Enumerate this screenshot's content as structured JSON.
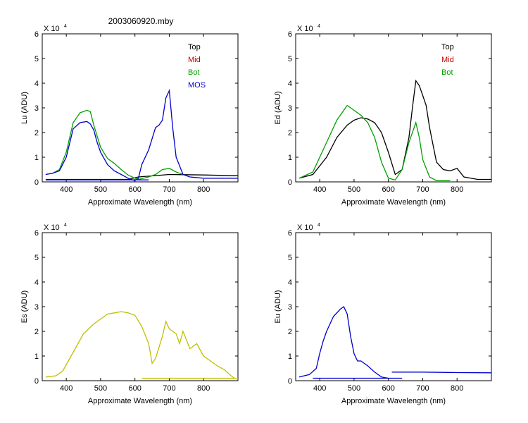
{
  "figure": {
    "title": "2003060920.mby"
  },
  "chart_data": [
    {
      "type": "line",
      "id": "lu",
      "ylabel": "Lu (ADU)",
      "xlabel": "Approximate Wavelength (nm)",
      "exponent_label": "X 10",
      "exponent_power": "4",
      "xlim": [
        330,
        900
      ],
      "ylim": [
        0,
        6
      ],
      "xticks": [
        400,
        500,
        600,
        700,
        800
      ],
      "yticks": [
        0,
        1,
        2,
        3,
        4,
        5,
        6
      ],
      "legend": [
        "Top",
        "Mid",
        "Bot",
        "MOS"
      ],
      "legend_colors": [
        "#000000",
        "#c00000",
        "#00a000",
        "#0000cc"
      ],
      "series": [
        {
          "name": "Top",
          "color": "#000000",
          "x": [
            340,
            420,
            500,
            580,
            610,
            700,
            800,
            900
          ],
          "y": [
            0.1,
            0.1,
            0.1,
            0.1,
            0.2,
            0.3,
            0.28,
            0.25
          ]
        },
        {
          "name": "Bot",
          "color": "#00a000",
          "x": [
            340,
            360,
            380,
            400,
            420,
            440,
            460,
            470,
            480,
            500,
            520,
            540,
            560,
            580,
            600,
            610,
            640,
            660,
            680,
            700,
            720,
            740
          ],
          "y": [
            0.3,
            0.35,
            0.5,
            1.2,
            2.4,
            2.8,
            2.9,
            2.85,
            2.3,
            1.4,
            0.95,
            0.75,
            0.5,
            0.28,
            0.15,
            0.1,
            0.2,
            0.3,
            0.5,
            0.55,
            0.4,
            0.3
          ]
        },
        {
          "name": "MOS",
          "color": "#0000cc",
          "x": [
            340,
            360,
            380,
            400,
            420,
            440,
            460,
            470,
            480,
            490,
            500,
            520,
            540,
            560,
            580,
            600,
            610,
            620,
            640,
            660,
            670,
            680,
            690,
            700,
            710,
            720,
            740,
            760,
            800,
            900
          ],
          "y": [
            0.3,
            0.35,
            0.45,
            1.0,
            2.15,
            2.4,
            2.45,
            2.35,
            2.1,
            1.6,
            1.2,
            0.7,
            0.45,
            0.3,
            0.15,
            0.05,
            0.15,
            0.7,
            1.3,
            2.2,
            2.3,
            2.5,
            3.4,
            3.7,
            2.2,
            1.0,
            0.3,
            0.2,
            0.15,
            0.15
          ]
        },
        {
          "name": "MOS baseline",
          "color": "#0000cc",
          "x": [
            340,
            640
          ],
          "y": [
            0.08,
            0.08
          ]
        }
      ]
    },
    {
      "type": "line",
      "id": "ed",
      "ylabel": "Ed (ADU)",
      "xlabel": "Approximate Wavelength (nm)",
      "exponent_label": "X 10",
      "exponent_power": "4",
      "xlim": [
        330,
        900
      ],
      "ylim": [
        0,
        6
      ],
      "xticks": [
        400,
        500,
        600,
        700,
        800
      ],
      "yticks": [
        0,
        1,
        2,
        3,
        4,
        5,
        6
      ],
      "legend": [
        "Top",
        "Mid",
        "Bot"
      ],
      "legend_colors": [
        "#000000",
        "#c00000",
        "#00a000"
      ],
      "series": [
        {
          "name": "Top",
          "color": "#000000",
          "x": [
            340,
            380,
            420,
            450,
            480,
            500,
            520,
            540,
            560,
            580,
            600,
            620,
            640,
            660,
            670,
            680,
            690,
            700,
            710,
            720,
            740,
            760,
            780,
            800,
            820,
            860,
            900
          ],
          "y": [
            0.15,
            0.3,
            1.0,
            1.8,
            2.3,
            2.5,
            2.6,
            2.55,
            2.4,
            2.0,
            1.2,
            0.3,
            0.5,
            1.8,
            3.0,
            4.1,
            3.9,
            3.5,
            3.1,
            2.2,
            0.8,
            0.5,
            0.45,
            0.55,
            0.2,
            0.1,
            0.1
          ]
        },
        {
          "name": "Bot",
          "color": "#00a000",
          "x": [
            340,
            380,
            420,
            450,
            480,
            500,
            520,
            540,
            560,
            580,
            600,
            620,
            640,
            660,
            680,
            690,
            700,
            720,
            740,
            780
          ],
          "y": [
            0.15,
            0.4,
            1.6,
            2.5,
            3.1,
            2.9,
            2.7,
            2.4,
            1.8,
            0.8,
            0.15,
            0.08,
            0.5,
            1.6,
            2.4,
            1.8,
            0.9,
            0.2,
            0.05,
            0.05
          ]
        }
      ]
    },
    {
      "type": "line",
      "id": "es",
      "ylabel": "Es (ADU)",
      "xlabel": "Approximate Wavelength (nm)",
      "exponent_label": "X 10",
      "exponent_power": "4",
      "xlim": [
        330,
        900
      ],
      "ylim": [
        0,
        6
      ],
      "xticks": [
        400,
        500,
        600,
        700,
        800
      ],
      "yticks": [
        0,
        1,
        2,
        3,
        4,
        5,
        6
      ],
      "legend": [],
      "legend_colors": [],
      "series": [
        {
          "name": "Es",
          "color": "#c0c000",
          "x": [
            340,
            370,
            390,
            410,
            430,
            450,
            480,
            500,
            520,
            540,
            560,
            580,
            600,
            620,
            640,
            650,
            660,
            680,
            690,
            700,
            720,
            730,
            740,
            760,
            780,
            800,
            820,
            840,
            860,
            880,
            890
          ],
          "y": [
            0.15,
            0.2,
            0.4,
            0.9,
            1.4,
            1.9,
            2.3,
            2.5,
            2.7,
            2.75,
            2.8,
            2.75,
            2.65,
            2.2,
            1.5,
            0.7,
            0.9,
            1.8,
            2.4,
            2.1,
            1.9,
            1.5,
            2.0,
            1.3,
            1.5,
            1.0,
            0.8,
            0.6,
            0.45,
            0.2,
            0.1
          ]
        },
        {
          "name": "Es baseline",
          "color": "#c0c000",
          "x": [
            620,
            900
          ],
          "y": [
            0.1,
            0.1
          ]
        }
      ]
    },
    {
      "type": "line",
      "id": "eu",
      "ylabel": "Eu (ADU)",
      "xlabel": "Approximate Wavelength (nm)",
      "exponent_label": "X 10",
      "exponent_power": "4",
      "xlim": [
        330,
        900
      ],
      "ylim": [
        0,
        6
      ],
      "xticks": [
        400,
        500,
        600,
        700,
        800
      ],
      "yticks": [
        0,
        1,
        2,
        3,
        4,
        5,
        6
      ],
      "legend": [],
      "legend_colors": [],
      "series": [
        {
          "name": "Eu",
          "color": "#0000cc",
          "x": [
            340,
            370,
            390,
            400,
            410,
            420,
            440,
            460,
            470,
            480,
            490,
            500,
            510,
            520,
            540,
            560,
            580,
            600
          ],
          "y": [
            0.15,
            0.25,
            0.5,
            1.1,
            1.6,
            2.0,
            2.6,
            2.9,
            3.0,
            2.7,
            1.8,
            1.1,
            0.8,
            0.8,
            0.6,
            0.35,
            0.15,
            0.1
          ]
        },
        {
          "name": "Eu baseline",
          "color": "#0000cc",
          "x": [
            380,
            640
          ],
          "y": [
            0.1,
            0.1
          ]
        },
        {
          "name": "Eu red",
          "color": "#0000cc",
          "x": [
            610,
            700,
            800,
            900
          ],
          "y": [
            0.35,
            0.35,
            0.33,
            0.32
          ]
        }
      ]
    }
  ]
}
